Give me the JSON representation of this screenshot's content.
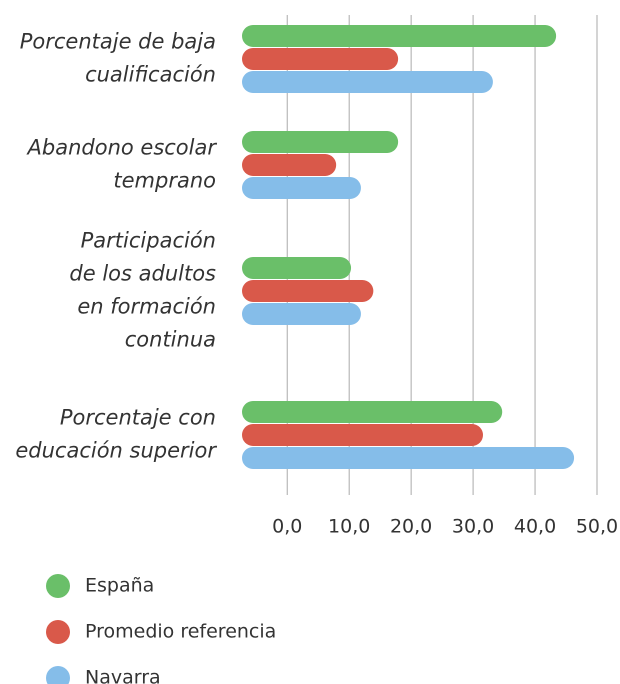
{
  "chart_data": {
    "type": "bar",
    "orientation": "horizontal",
    "categories": [
      [
        "Porcentaje de baja",
        "cualificación"
      ],
      [
        "Abandono escolar",
        "temprano"
      ],
      [
        "Participación",
        "de los adultos",
        "en formación",
        "continua"
      ],
      [
        "Porcentaje con",
        "educación superior"
      ]
    ],
    "series": [
      {
        "name": "España",
        "color": "#6abf69",
        "values": [
          43.4,
          17.9,
          10.3,
          34.7
        ]
      },
      {
        "name": "Promedio referencia",
        "color": "#d9594a",
        "values": [
          17.9,
          7.9,
          13.9,
          31.6
        ]
      },
      {
        "name": "Navarra",
        "color": "#85bde9",
        "values": [
          33.2,
          11.9,
          11.9,
          46.3
        ]
      }
    ],
    "xlim": [
      -7.3,
      50
    ],
    "xticks": [
      {
        "value": 0,
        "label": "0,0"
      },
      {
        "value": 10,
        "label": "10,0"
      },
      {
        "value": 20,
        "label": "20,0"
      },
      {
        "value": 30,
        "label": "30,0"
      },
      {
        "value": 40,
        "label": "40,0"
      },
      {
        "value": 50,
        "label": "50,0"
      }
    ],
    "grid": true,
    "legend": "bottom-left"
  }
}
